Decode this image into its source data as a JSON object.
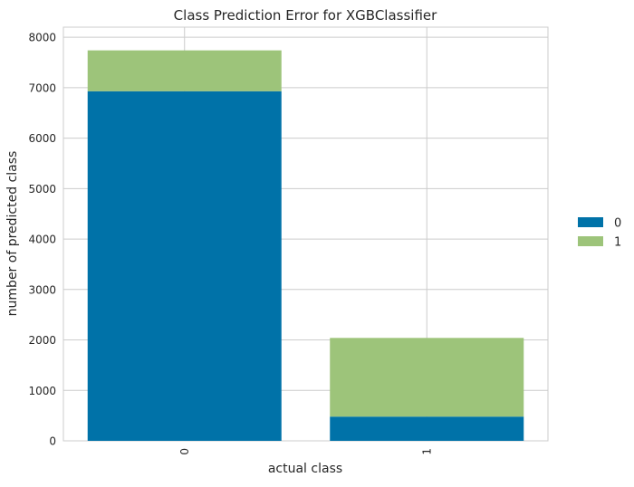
{
  "chart_data": {
    "type": "bar",
    "stacked": true,
    "title": "Class Prediction Error for XGBClassifier",
    "xlabel": "actual class",
    "ylabel": "number of predicted class",
    "categories": [
      "0",
      "1"
    ],
    "series": [
      {
        "name": "0",
        "color": "#0072a8",
        "values": [
          6930,
          480
        ]
      },
      {
        "name": "1",
        "color": "#9dc47a",
        "values": [
          810,
          1560
        ]
      }
    ],
    "ylim": [
      0,
      8200
    ],
    "yticks": [
      0,
      1000,
      2000,
      3000,
      4000,
      5000,
      6000,
      7000,
      8000
    ],
    "grid": true,
    "legend_position": "right",
    "xtick_rotation": 90
  }
}
